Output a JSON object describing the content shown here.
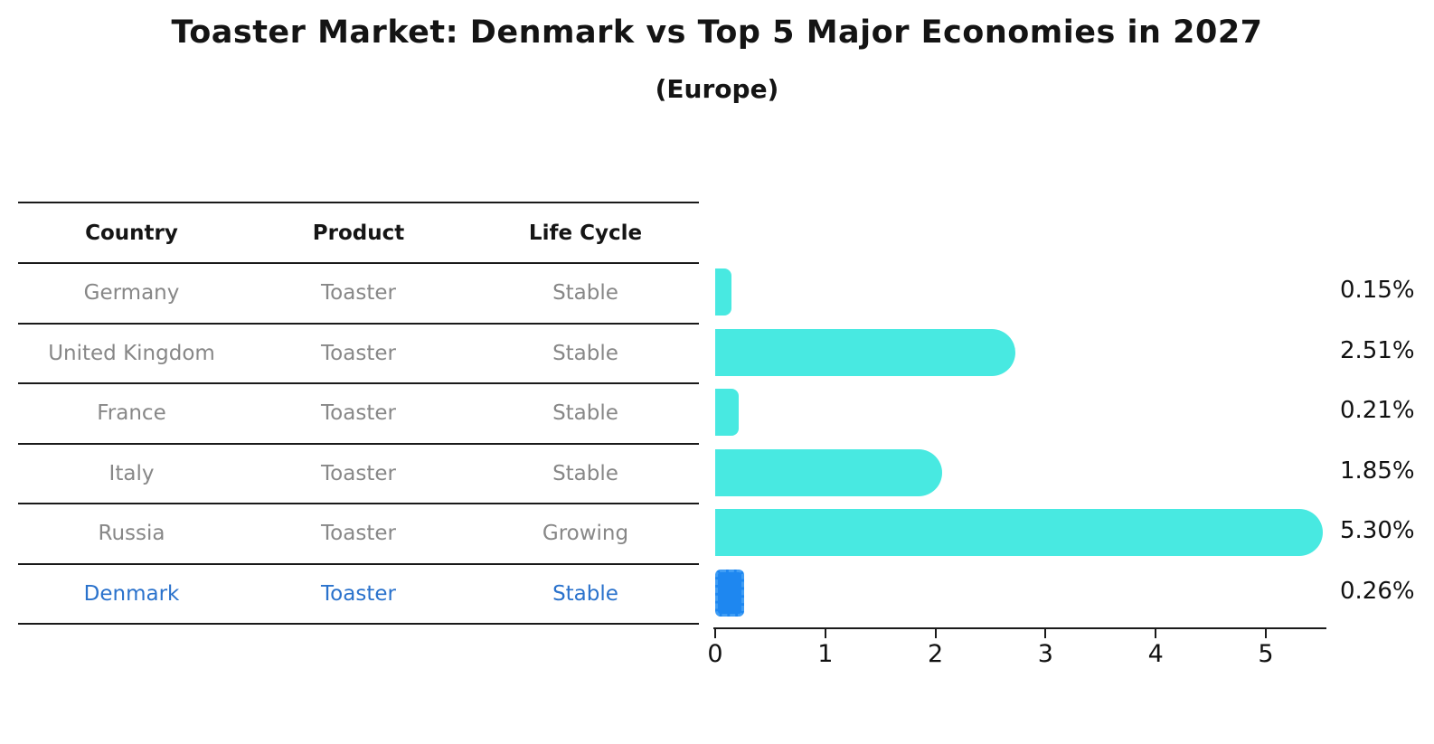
{
  "title": "Toaster Market: Denmark vs Top 5 Major Economies in 2027",
  "subtitle": "(Europe)",
  "table": {
    "headers": [
      "Country",
      "Product",
      "Life Cycle"
    ],
    "rows": [
      {
        "country": "Germany",
        "product": "Toaster",
        "life_cycle": "Stable"
      },
      {
        "country": "United Kingdom",
        "product": "Toaster",
        "life_cycle": "Stable"
      },
      {
        "country": "France",
        "product": "Toaster",
        "life_cycle": "Stable"
      },
      {
        "country": "Italy",
        "product": "Toaster",
        "life_cycle": "Stable"
      },
      {
        "country": "Russia",
        "product": "Toaster",
        "life_cycle": "Growing"
      },
      {
        "country": "Denmark",
        "product": "Toaster",
        "life_cycle": "Stable"
      }
    ]
  },
  "chart_data": {
    "type": "bar",
    "orientation": "horizontal",
    "categories": [
      "Germany",
      "United Kingdom",
      "France",
      "Italy",
      "Russia",
      "Denmark"
    ],
    "values": [
      0.15,
      2.51,
      0.21,
      1.85,
      5.3,
      0.26
    ],
    "value_labels": [
      "0.15%",
      "2.51%",
      "0.21%",
      "1.85%",
      "5.30%",
      "0.26%"
    ],
    "x_ticks": [
      "0",
      "1",
      "2",
      "3",
      "4",
      "5"
    ],
    "xlim": [
      0,
      5.55
    ],
    "grid": false,
    "legend": false,
    "bar_color": "#48E9E1",
    "highlight": {
      "category": "Denmark",
      "bar_color": "#1E87F0",
      "bar_border_style": "dashed",
      "bar_border_color": "#3F9DF5",
      "text_color": "#2A72CC"
    }
  },
  "colors": {
    "title_text": "#141414",
    "header_text": "#151515",
    "row_text": "#878787",
    "table_line": "#1a1a1a",
    "label_text": "#111111"
  }
}
